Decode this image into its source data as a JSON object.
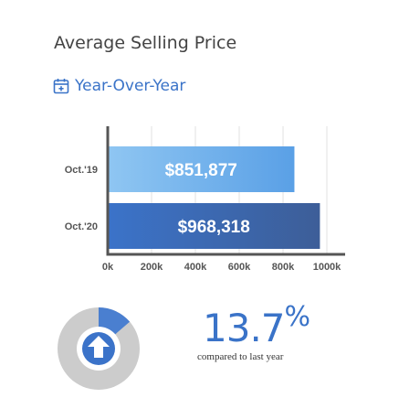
{
  "header": {
    "title": "Average Selling Price",
    "subtitle": "Year-Over-Year"
  },
  "chart_data": {
    "type": "bar",
    "orientation": "horizontal",
    "categories": [
      "Oct.'19",
      "Oct.'20"
    ],
    "values": [
      851877,
      968318
    ],
    "value_labels": [
      "$851,877",
      "$968,318"
    ],
    "xlim": [
      0,
      1000000
    ],
    "x_ticks": [
      "0k",
      "200k",
      "400k",
      "600k",
      "800k",
      "1000k"
    ],
    "bar_colors": [
      [
        "#8fc6f2",
        "#5aa0e6"
      ],
      [
        "#3b73c9",
        "#3d5e98"
      ]
    ],
    "grid": true
  },
  "summary": {
    "change_percent": 13.7,
    "change_value": "13.7",
    "change_unit": "%",
    "compare_text": "compared to last year",
    "direction": "up-arrow-icon",
    "accent": "#4a7fd0"
  }
}
